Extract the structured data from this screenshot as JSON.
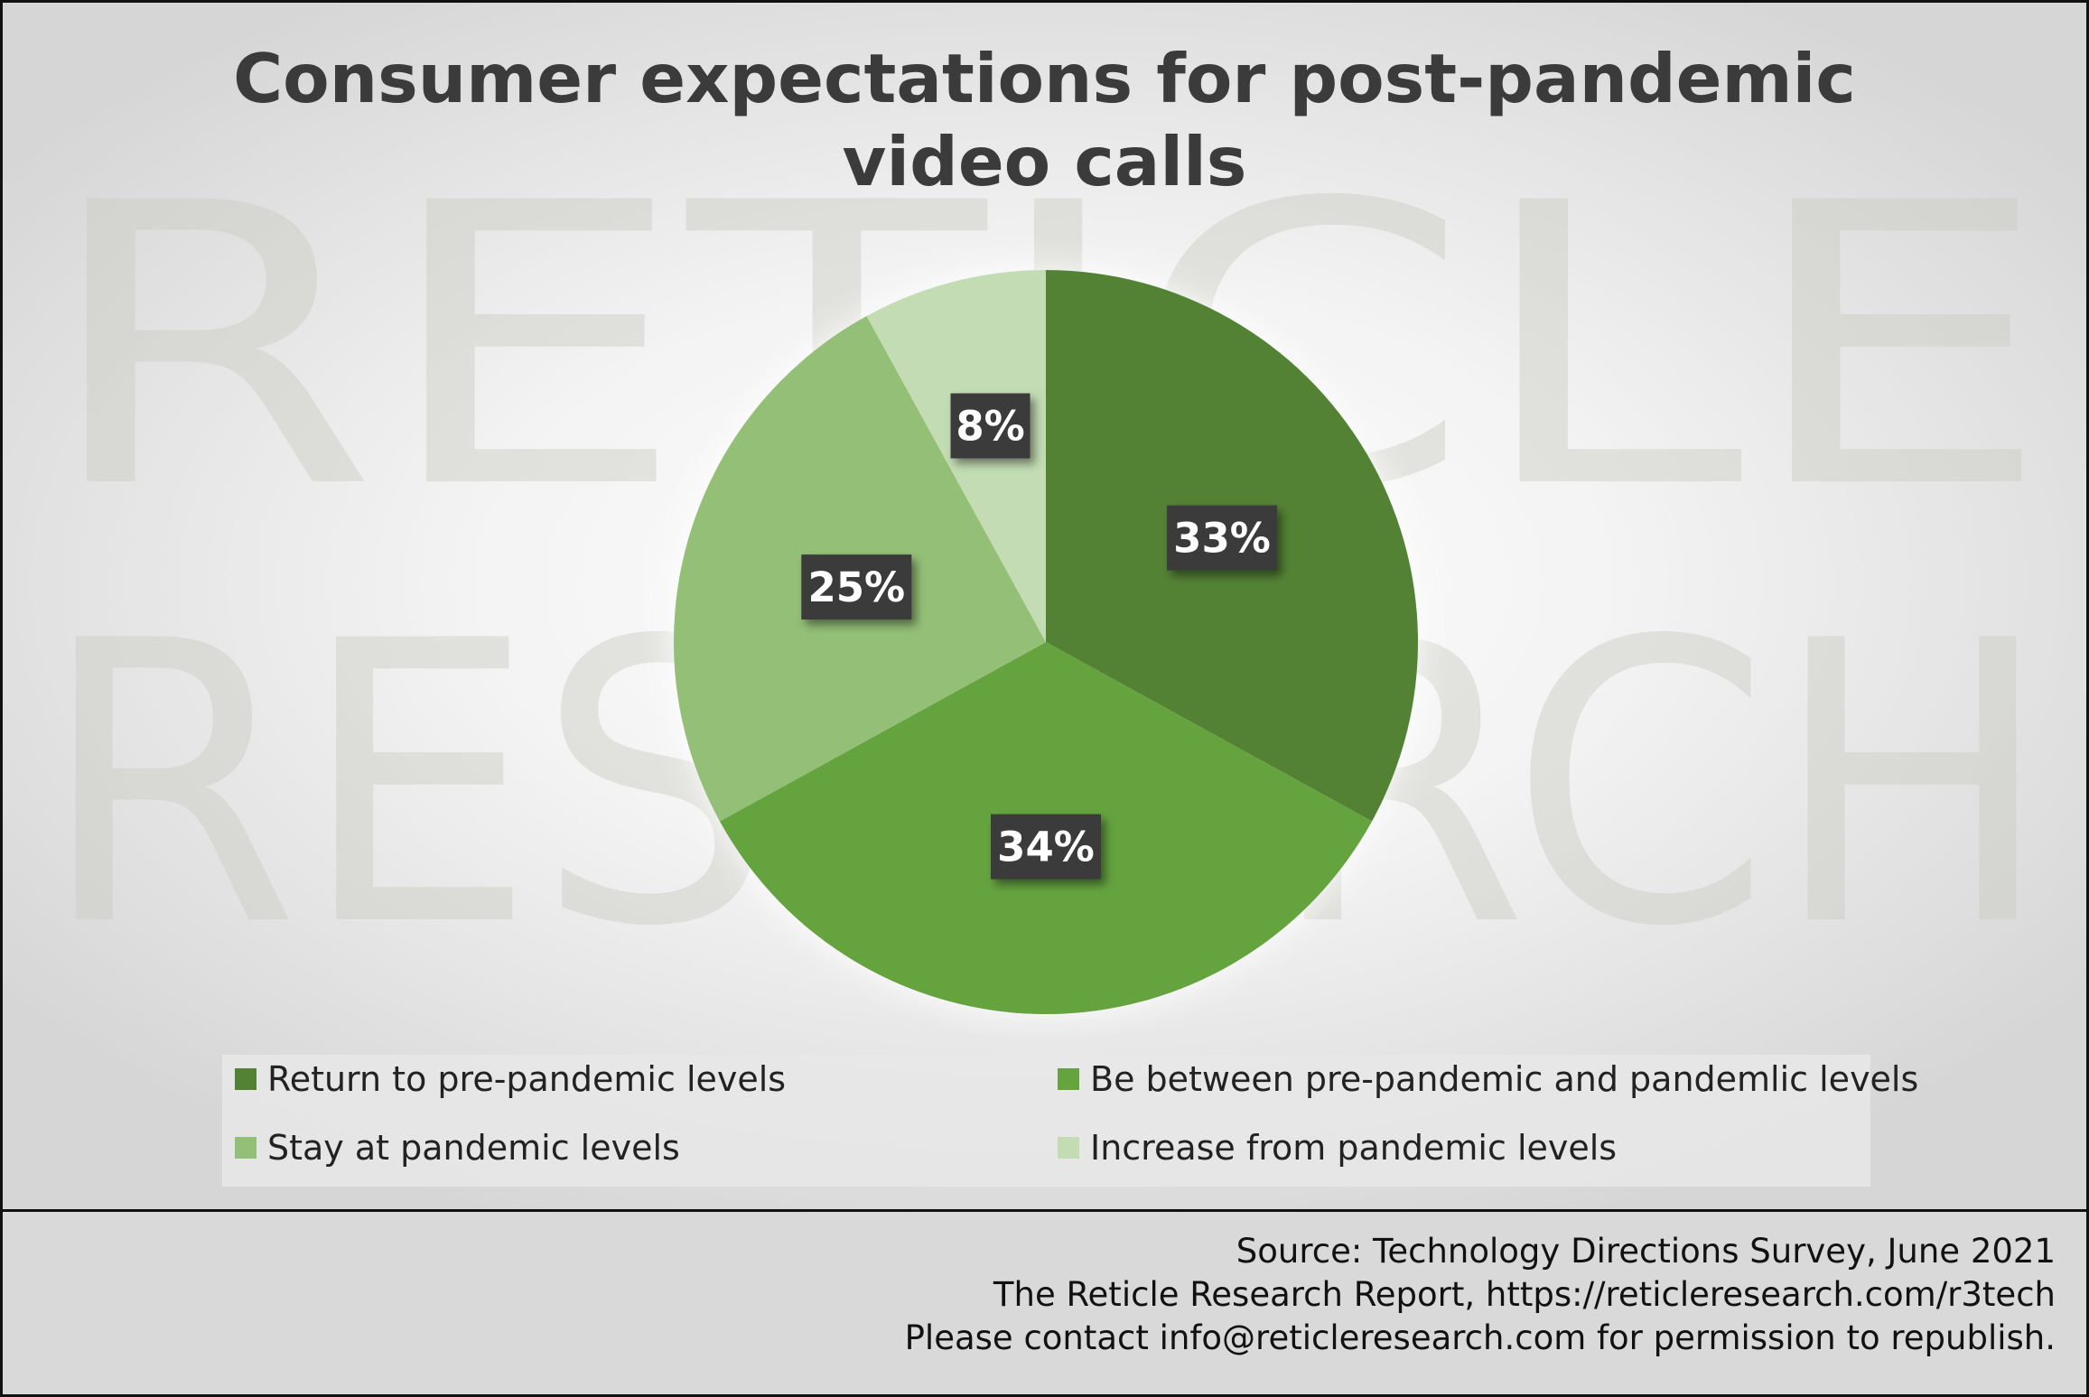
{
  "title_lines": [
    "Consumer expectations for post-pandemic",
    "video calls"
  ],
  "watermark": {
    "line1": "RETICLE",
    "line2": "RESEARCH"
  },
  "chart_data": {
    "type": "pie",
    "title": "Consumer expectations for post-pandemic video calls",
    "slices": [
      {
        "label": "Return to pre-pandemic levels",
        "value": 33,
        "value_label": "33%",
        "color": "#548235"
      },
      {
        "label": "Be between pre-pandemic and pandemlic levels",
        "value": 34,
        "value_label": "34%",
        "color": "#65a33f"
      },
      {
        "label": "Stay at pandemic levels",
        "value": 25,
        "value_label": "25%",
        "color": "#93bf77"
      },
      {
        "label": "Increase from pandemic levels",
        "value": 8,
        "value_label": "8%",
        "color": "#c3dcb3"
      }
    ],
    "legend_position": "bottom"
  },
  "footer": {
    "source": "Source: Technology Directions Survey, June 2021",
    "report": "The Reticle Research Report, https://reticleresearch.com/r3tech",
    "contact": "Please contact info@reticleresearch.com for permission to republish."
  },
  "colors": {
    "label_box": "#3a3a3a",
    "label_text": "#ffffff",
    "title": "#3b3b3b"
  }
}
